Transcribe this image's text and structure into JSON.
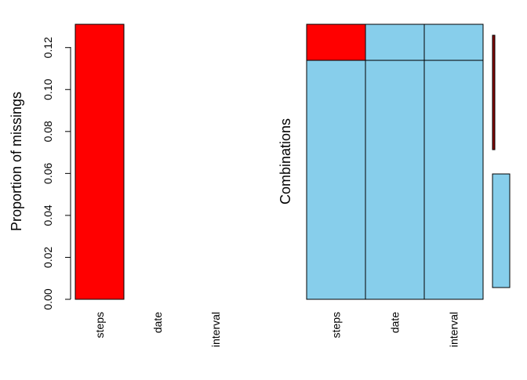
{
  "chart_data": [
    {
      "type": "bar",
      "categories": [
        "steps",
        "date",
        "interval"
      ],
      "values": [
        0.1311,
        0,
        0
      ],
      "ylabel": "Proportion of missings",
      "yticks": [
        "0.00",
        "0.02",
        "0.04",
        "0.06",
        "0.08",
        "0.10",
        "0.12"
      ],
      "ylim": [
        0,
        0.1311
      ],
      "bar_colors": [
        "#ff0000",
        "#ffffff",
        "#ffffff"
      ]
    },
    {
      "type": "heatmap",
      "columns": [
        "steps",
        "date",
        "interval"
      ],
      "ylabel": "Combinations",
      "combinations": [
        {
          "pattern": [
            1,
            0,
            0
          ],
          "proportion": 0.1311
        },
        {
          "pattern": [
            0,
            0,
            0
          ],
          "proportion": 0.8689
        }
      ],
      "missing_color": "#ff0000",
      "observed_color": "#87ceeb",
      "frequency_bar_colors": [
        "#8b0000",
        "#87ceeb"
      ]
    }
  ]
}
